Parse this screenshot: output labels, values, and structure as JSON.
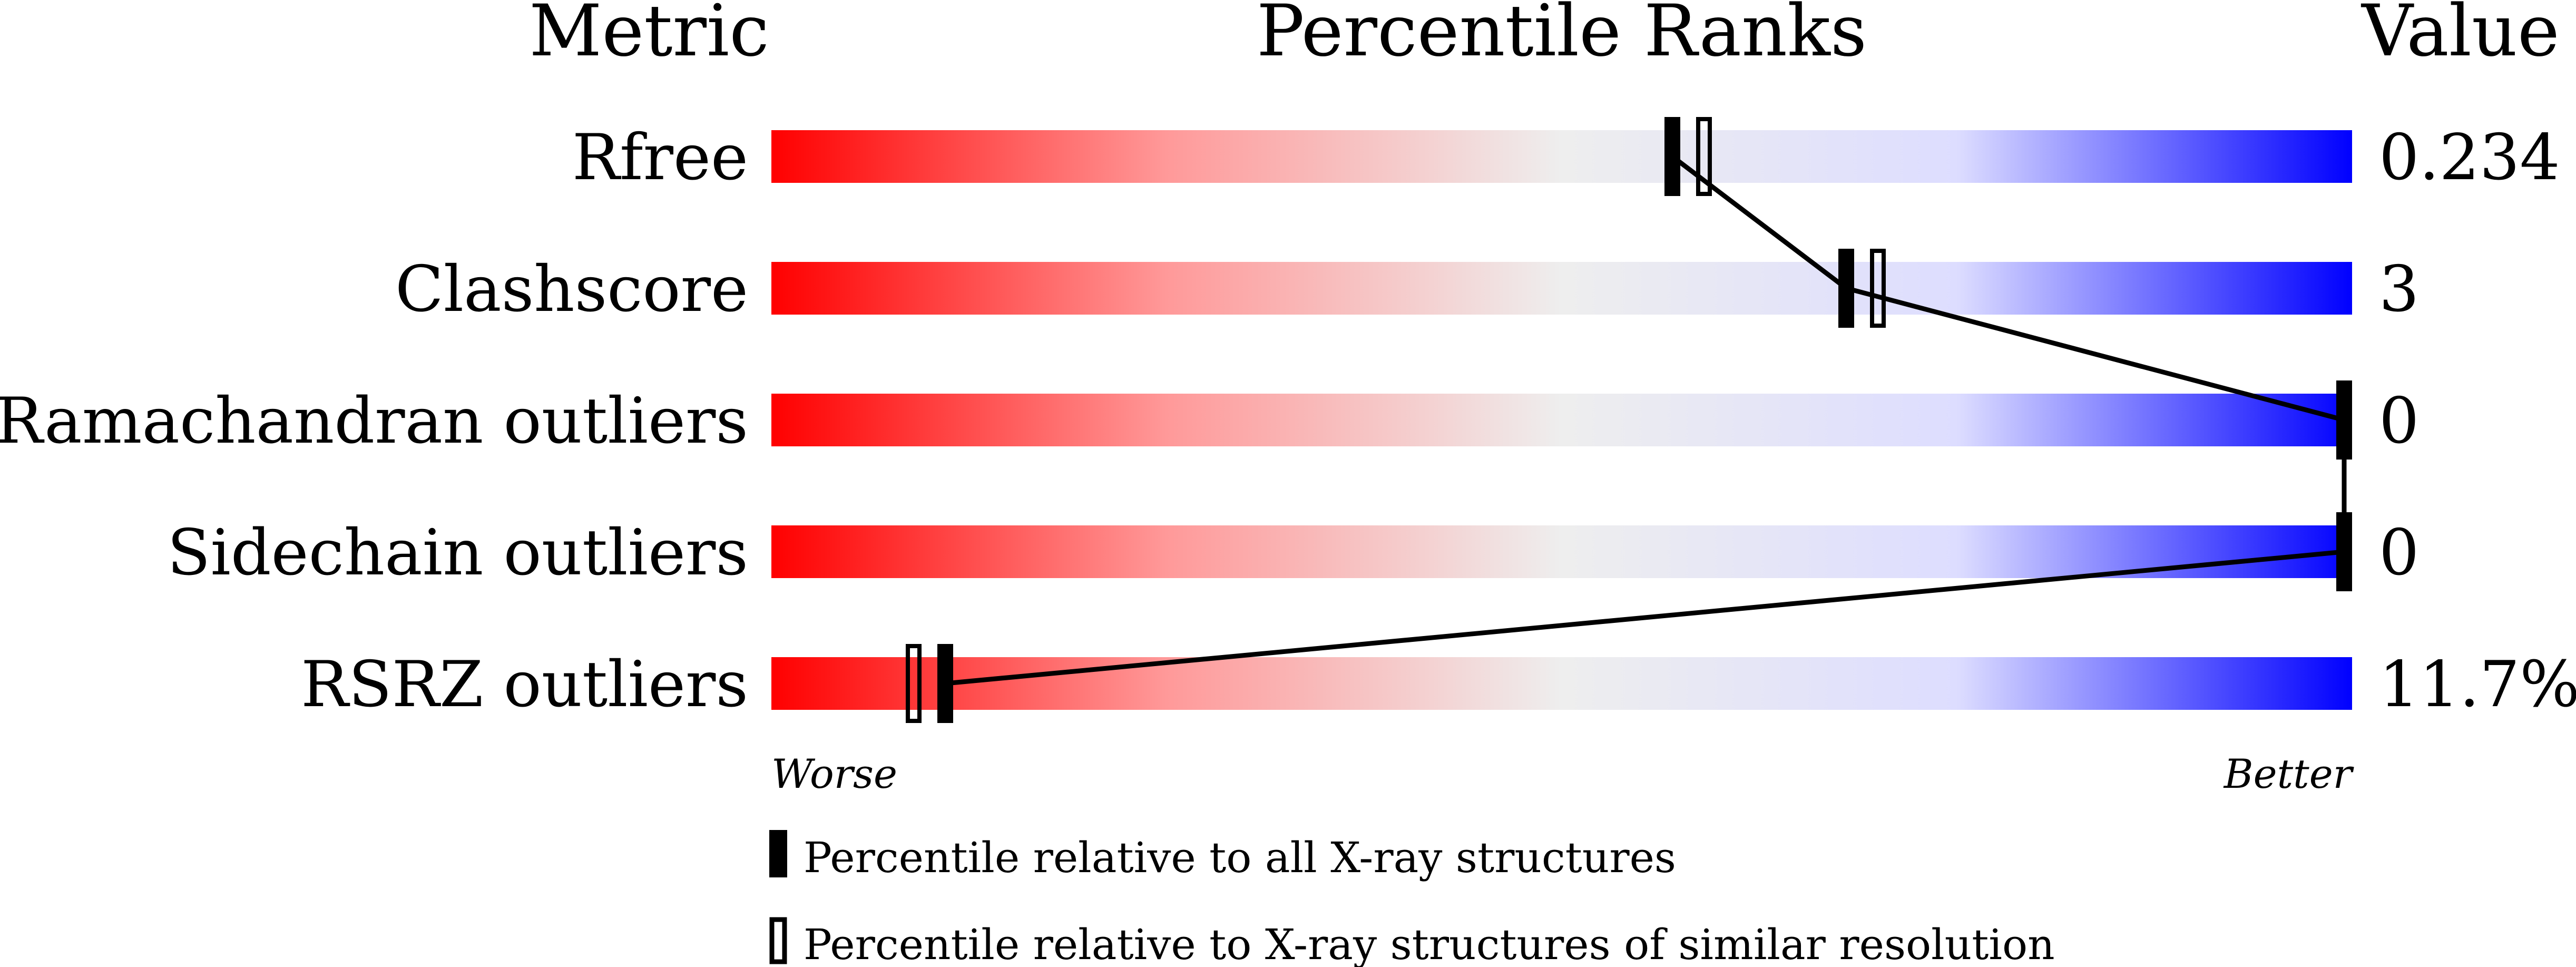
{
  "chart_data": {
    "type": "percentile-slider",
    "headers": {
      "metric": "Metric",
      "ranks": "Percentile Ranks",
      "value": "Value"
    },
    "axis": {
      "left": "Worse",
      "right": "Better",
      "range": [
        0,
        100
      ]
    },
    "gradient_colors": [
      "#ff0000",
      "#eeeeee",
      "#ddddff",
      "#0000ff"
    ],
    "rows": [
      {
        "metric": "Rfree",
        "value": "0.234",
        "percentile_all": 57,
        "percentile_similar": 59
      },
      {
        "metric": "Clashscore",
        "value": "3",
        "percentile_all": 68,
        "percentile_similar": 70
      },
      {
        "metric": "Ramachandran outliers",
        "value": "0",
        "percentile_all": 100,
        "percentile_similar": 100
      },
      {
        "metric": "Sidechain outliers",
        "value": "0",
        "percentile_all": 100,
        "percentile_similar": 100
      },
      {
        "metric": "RSRZ outliers",
        "value": "11.7%",
        "percentile_all": 11,
        "percentile_similar": 9
      }
    ],
    "legend": [
      {
        "marker": "filled",
        "label": "Percentile relative to all X-ray structures"
      },
      {
        "marker": "open",
        "label": "Percentile relative to X-ray structures of similar resolution"
      }
    ]
  }
}
